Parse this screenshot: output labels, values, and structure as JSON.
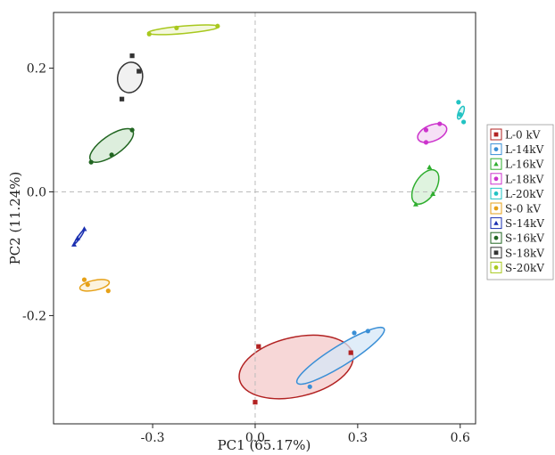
{
  "chart_data": {
    "type": "scatter",
    "title": "",
    "xlabel": "PC1 (65.17%)",
    "ylabel": "PC2 (11.24%)",
    "xlim": [
      -0.59,
      0.645
    ],
    "ylim": [
      -0.375,
      0.29
    ],
    "xticks": [
      -0.3,
      0.0,
      0.3,
      0.6
    ],
    "xtick_labels": [
      "-0.3",
      "0.0",
      "0.3",
      "0.6"
    ],
    "yticks": [
      -0.2,
      0.0,
      0.2
    ],
    "ytick_labels": [
      "-0.2",
      "0.0",
      "0.2"
    ],
    "grid": false,
    "reference_lines": [
      0,
      0
    ],
    "legend_position": "right",
    "series": [
      {
        "name": "L-0 kV",
        "color": "#b22222",
        "fill": "#f4c9c9",
        "marker": "square",
        "points": [
          [
            0.01,
            -0.25
          ],
          [
            0.0,
            -0.34
          ],
          [
            0.28,
            -0.26
          ]
        ],
        "ellipse": {
          "cx": 0.12,
          "cy": -0.283,
          "rx": 0.17,
          "ry": 0.048,
          "angle": 13
        }
      },
      {
        "name": "L-14kV",
        "color": "#3a8fd6",
        "fill": "#d5e7f7",
        "marker": "circle",
        "points": [
          [
            0.16,
            -0.315
          ],
          [
            0.29,
            -0.228
          ],
          [
            0.33,
            -0.225
          ]
        ],
        "ellipse": {
          "cx": 0.25,
          "cy": -0.265,
          "rx": 0.15,
          "ry": 0.016,
          "angle": 32
        }
      },
      {
        "name": "L-16kV",
        "color": "#2fae2f",
        "fill": "#d4efd4",
        "marker": "triangle",
        "points": [
          [
            0.47,
            -0.02
          ],
          [
            0.51,
            0.04
          ],
          [
            0.52,
            -0.003
          ]
        ],
        "ellipse": {
          "cx": 0.498,
          "cy": 0.008,
          "rx": 0.056,
          "ry": 0.017,
          "angle": 58
        }
      },
      {
        "name": "L-18kV",
        "color": "#cc33cc",
        "fill": "#f3d6f3",
        "marker": "circle",
        "points": [
          [
            0.5,
            0.08
          ],
          [
            0.5,
            0.1
          ],
          [
            0.54,
            0.11
          ]
        ],
        "ellipse": {
          "cx": 0.518,
          "cy": 0.095,
          "rx": 0.045,
          "ry": 0.013,
          "angle": 22
        }
      },
      {
        "name": "L-20kV",
        "color": "#22c3c3",
        "fill": "#d2f2f2",
        "marker": "circle",
        "points": [
          [
            0.595,
            0.145
          ],
          [
            0.6,
            0.125
          ],
          [
            0.61,
            0.113
          ]
        ],
        "ellipse": {
          "cx": 0.602,
          "cy": 0.128,
          "rx": 0.02,
          "ry": 0.004,
          "angle": 68
        }
      },
      {
        "name": "S-0 kV",
        "color": "#e6a118",
        "fill": "#fbefd3",
        "marker": "circle",
        "points": [
          [
            -0.5,
            -0.142
          ],
          [
            -0.49,
            -0.15
          ],
          [
            -0.43,
            -0.16
          ]
        ],
        "ellipse": {
          "cx": -0.47,
          "cy": -0.151,
          "rx": 0.044,
          "ry": 0.008,
          "angle": 12
        }
      },
      {
        "name": "S-14kV",
        "color": "#1a2fb0",
        "fill": "#d3d8f1",
        "marker": "triangle",
        "points": [
          [
            -0.53,
            -0.085
          ],
          [
            -0.52,
            -0.075
          ],
          [
            -0.5,
            -0.06
          ]
        ],
        "ellipse": {
          "cx": -0.515,
          "cy": -0.073,
          "rx": 0.024,
          "ry": 0.002,
          "angle": 55
        }
      },
      {
        "name": "S-16kV",
        "color": "#226622",
        "fill": "#d2e8d2",
        "marker": "circle",
        "points": [
          [
            -0.48,
            0.048
          ],
          [
            -0.42,
            0.06
          ],
          [
            -0.36,
            0.1
          ]
        ],
        "ellipse": {
          "cx": -0.42,
          "cy": 0.075,
          "rx": 0.075,
          "ry": 0.016,
          "angle": 35
        }
      },
      {
        "name": "S-18kV",
        "color": "#333333",
        "fill": "#ececec",
        "marker": "square",
        "points": [
          [
            -0.39,
            0.15
          ],
          [
            -0.36,
            0.22
          ],
          [
            -0.34,
            0.195
          ]
        ],
        "ellipse": {
          "cx": -0.366,
          "cy": 0.185,
          "rx": 0.045,
          "ry": 0.02,
          "angle": 78
        }
      },
      {
        "name": "S-20kV",
        "color": "#a8c81e",
        "fill": "#f0f6d2",
        "marker": "circle",
        "points": [
          [
            -0.31,
            0.255
          ],
          [
            -0.23,
            0.265
          ],
          [
            -0.11,
            0.268
          ]
        ],
        "ellipse": {
          "cx": -0.21,
          "cy": 0.262,
          "rx": 0.105,
          "ry": 0.006,
          "angle": 5
        }
      }
    ]
  }
}
